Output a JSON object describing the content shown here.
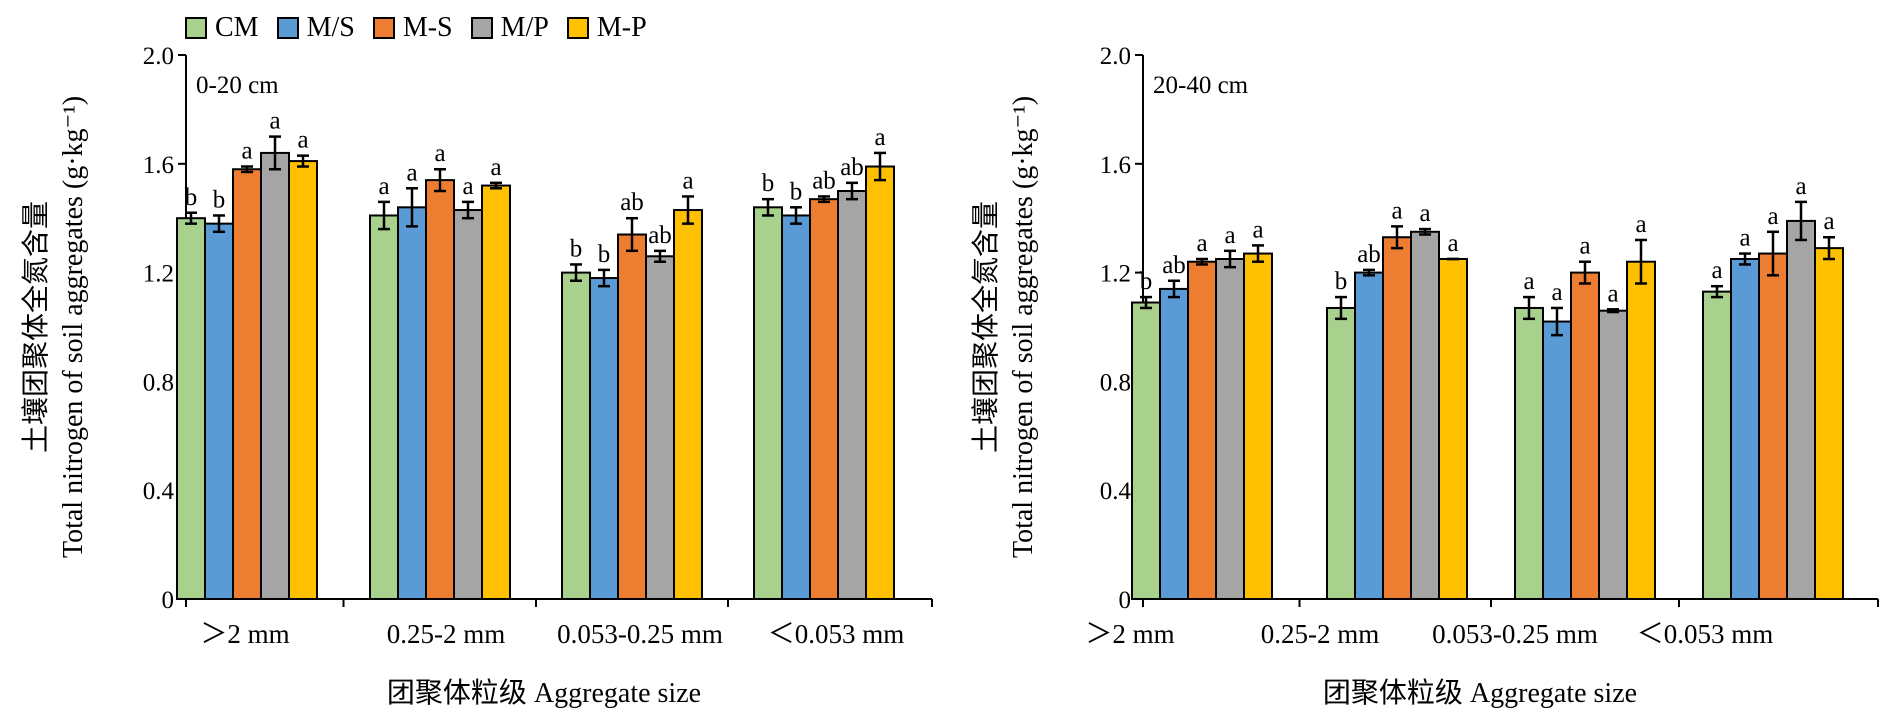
{
  "legend": {
    "items": [
      {
        "label": "CM",
        "color": "#a9d18e"
      },
      {
        "label": "M/S",
        "color": "#5b9bd5"
      },
      {
        "label": "M-S",
        "color": "#ed7d31"
      },
      {
        "label": "M/P",
        "color": "#a5a5a5"
      },
      {
        "label": "M-P",
        "color": "#ffc000"
      }
    ]
  },
  "chart_data": [
    {
      "type": "bar",
      "panel_label": "0-20 cm",
      "ylabel_cn": "土壤团聚体全氮含量",
      "ylabel_en": "Total nitrogen of soil aggregates (g·kg⁻¹)",
      "xlabel": "团聚体粒级 Aggregate size",
      "ylim": [
        0,
        2.0
      ],
      "yticks": [
        "0",
        "0.4",
        "0.8",
        "1.2",
        "1.6",
        "2.0"
      ],
      "categories": [
        ">2 mm",
        "0.25-2 mm",
        "0.053-0.25 mm",
        "<0.053 mm"
      ],
      "category_labels": [
        "＞2 mm",
        "0.25-2 mm",
        "0.053-0.25 mm",
        "＜0.053 mm"
      ],
      "series": [
        {
          "name": "CM",
          "values": [
            1.4,
            1.41,
            1.2,
            1.44
          ],
          "errors": [
            0.02,
            0.05,
            0.03,
            0.03
          ],
          "sig": [
            "b",
            "a",
            "b",
            "b"
          ]
        },
        {
          "name": "M/S",
          "values": [
            1.38,
            1.44,
            1.18,
            1.41
          ],
          "errors": [
            0.03,
            0.07,
            0.03,
            0.03
          ],
          "sig": [
            "b",
            "a",
            "b",
            "b"
          ]
        },
        {
          "name": "M-S",
          "values": [
            1.58,
            1.54,
            1.34,
            1.47
          ],
          "errors": [
            0.01,
            0.04,
            0.06,
            0.01
          ],
          "sig": [
            "a",
            "a",
            "ab",
            "ab"
          ]
        },
        {
          "name": "M/P",
          "values": [
            1.64,
            1.43,
            1.26,
            1.5
          ],
          "errors": [
            0.06,
            0.03,
            0.02,
            0.03
          ],
          "sig": [
            "a",
            "a",
            "ab",
            "ab"
          ]
        },
        {
          "name": "M-P",
          "values": [
            1.61,
            1.52,
            1.43,
            1.59
          ],
          "errors": [
            0.02,
            0.01,
            0.05,
            0.05
          ],
          "sig": [
            "a",
            "a",
            "a",
            "a"
          ]
        }
      ]
    },
    {
      "type": "bar",
      "panel_label": "20-40 cm",
      "ylabel_cn": "土壤团聚体全氮含量",
      "ylabel_en": "Total nitrogen of soil aggregates (g·kg⁻¹)",
      "xlabel": "团聚体粒级 Aggregate size",
      "ylim": [
        0,
        2.0
      ],
      "yticks": [
        "0",
        "0.4",
        "0.8",
        "1.2",
        "1.6",
        "2.0"
      ],
      "categories": [
        ">2 mm",
        "0.25-2 mm",
        "0.053-0.25 mm",
        "<0.053 mm"
      ],
      "category_labels": [
        "＞2 mm",
        "0.25-2 mm",
        "0.053-0.25 mm",
        "＜0.053 mm"
      ],
      "series": [
        {
          "name": "CM",
          "values": [
            1.09,
            1.07,
            1.07,
            1.13
          ],
          "errors": [
            0.02,
            0.04,
            0.04,
            0.02
          ],
          "sig": [
            "b",
            "b",
            "a",
            "a"
          ]
        },
        {
          "name": "M/S",
          "values": [
            1.14,
            1.2,
            1.02,
            1.25
          ],
          "errors": [
            0.03,
            0.01,
            0.05,
            0.02
          ],
          "sig": [
            "ab",
            "ab",
            "a",
            "a"
          ]
        },
        {
          "name": "M-S",
          "values": [
            1.24,
            1.33,
            1.2,
            1.27
          ],
          "errors": [
            0.01,
            0.04,
            0.04,
            0.08
          ],
          "sig": [
            "a",
            "a",
            "a",
            "a"
          ]
        },
        {
          "name": "M/P",
          "values": [
            1.25,
            1.35,
            1.06,
            1.39
          ],
          "errors": [
            0.03,
            0.01,
            0.005,
            0.07
          ],
          "sig": [
            "a",
            "a",
            "a",
            "a"
          ]
        },
        {
          "name": "M-P",
          "values": [
            1.27,
            1.25,
            1.24,
            1.29
          ],
          "errors": [
            0.03,
            0.0,
            0.08,
            0.04
          ],
          "sig": [
            "a",
            "a",
            "a",
            "a"
          ]
        }
      ]
    }
  ]
}
